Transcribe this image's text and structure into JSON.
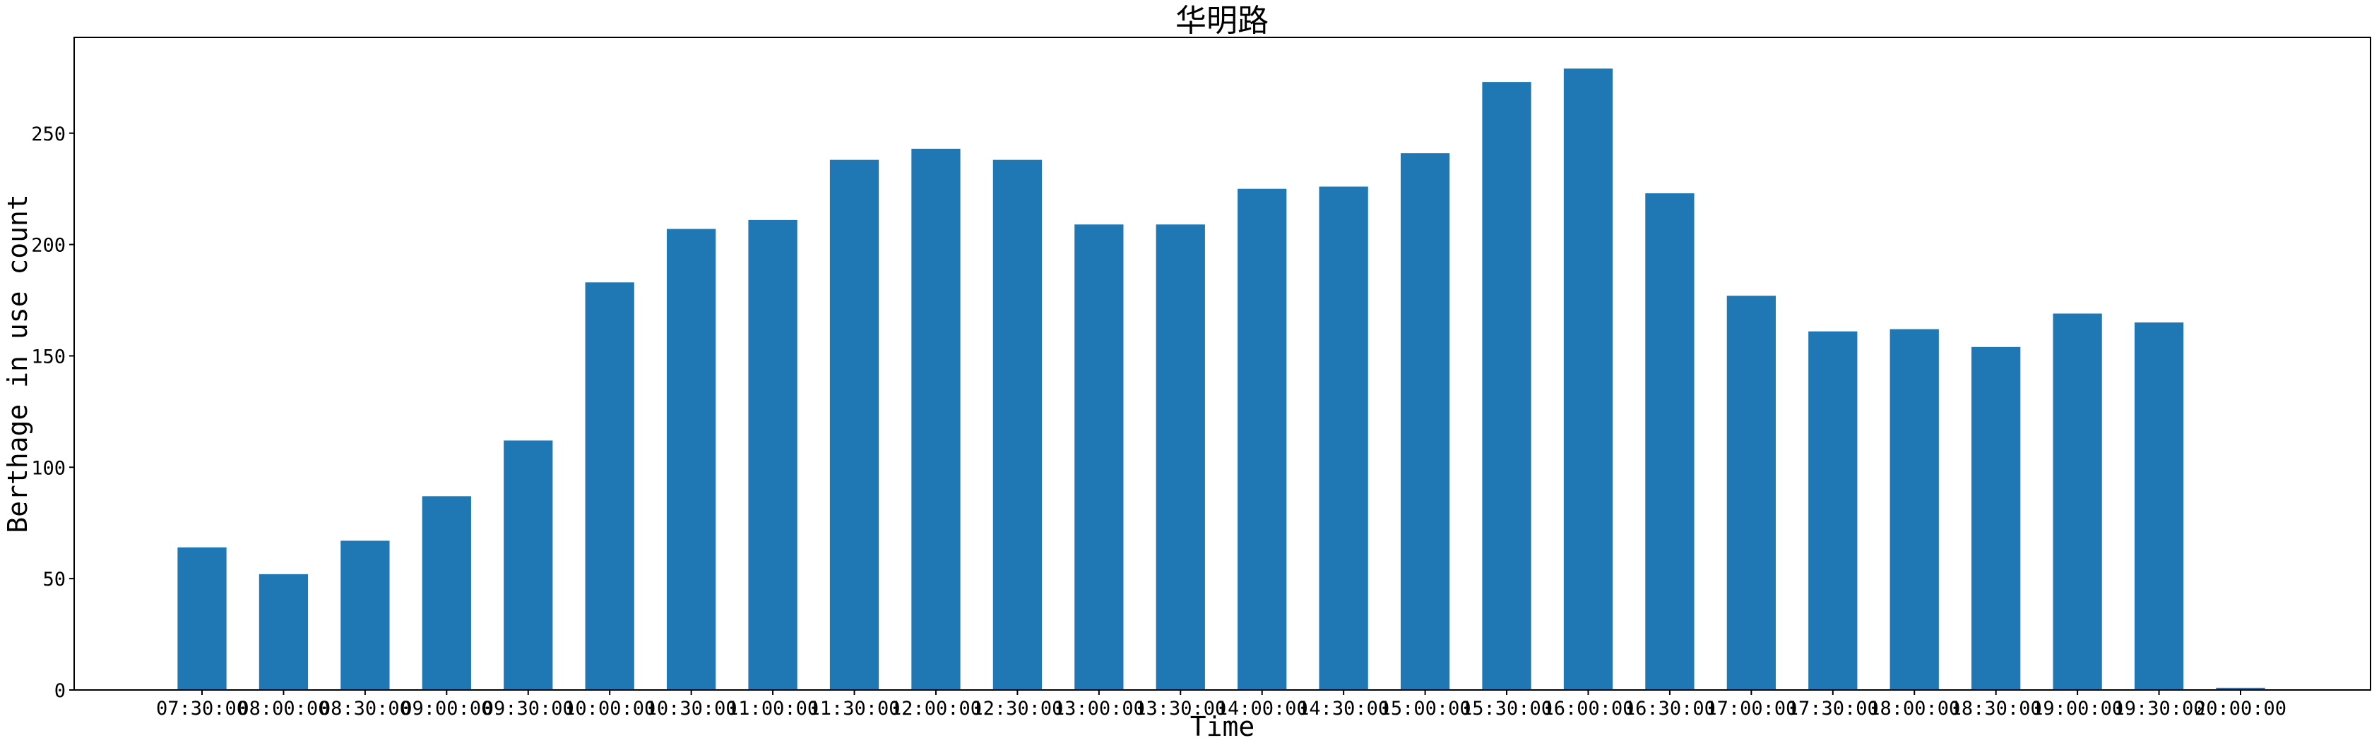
{
  "chart_data": {
    "type": "bar",
    "title": "华明路",
    "xlabel": "Time",
    "ylabel": "Berthage in use count",
    "categories": [
      "07:30:00",
      "08:00:00",
      "08:30:00",
      "09:00:00",
      "09:30:00",
      "10:00:00",
      "10:30:00",
      "11:00:00",
      "11:30:00",
      "12:00:00",
      "12:30:00",
      "13:00:00",
      "13:30:00",
      "14:00:00",
      "14:30:00",
      "15:00:00",
      "15:30:00",
      "16:00:00",
      "16:30:00",
      "17:00:00",
      "17:30:00",
      "18:00:00",
      "18:30:00",
      "19:00:00",
      "19:30:00",
      "20:00:00"
    ],
    "values": [
      64,
      52,
      67,
      87,
      112,
      183,
      207,
      211,
      238,
      243,
      238,
      209,
      209,
      225,
      226,
      241,
      273,
      279,
      223,
      177,
      161,
      162,
      154,
      169,
      165,
      1
    ],
    "ylim": [
      0,
      293
    ],
    "yticks": [
      0,
      50,
      100,
      150,
      200,
      250
    ],
    "grid": false,
    "legend": false,
    "bar_color": "#1f77b4"
  }
}
